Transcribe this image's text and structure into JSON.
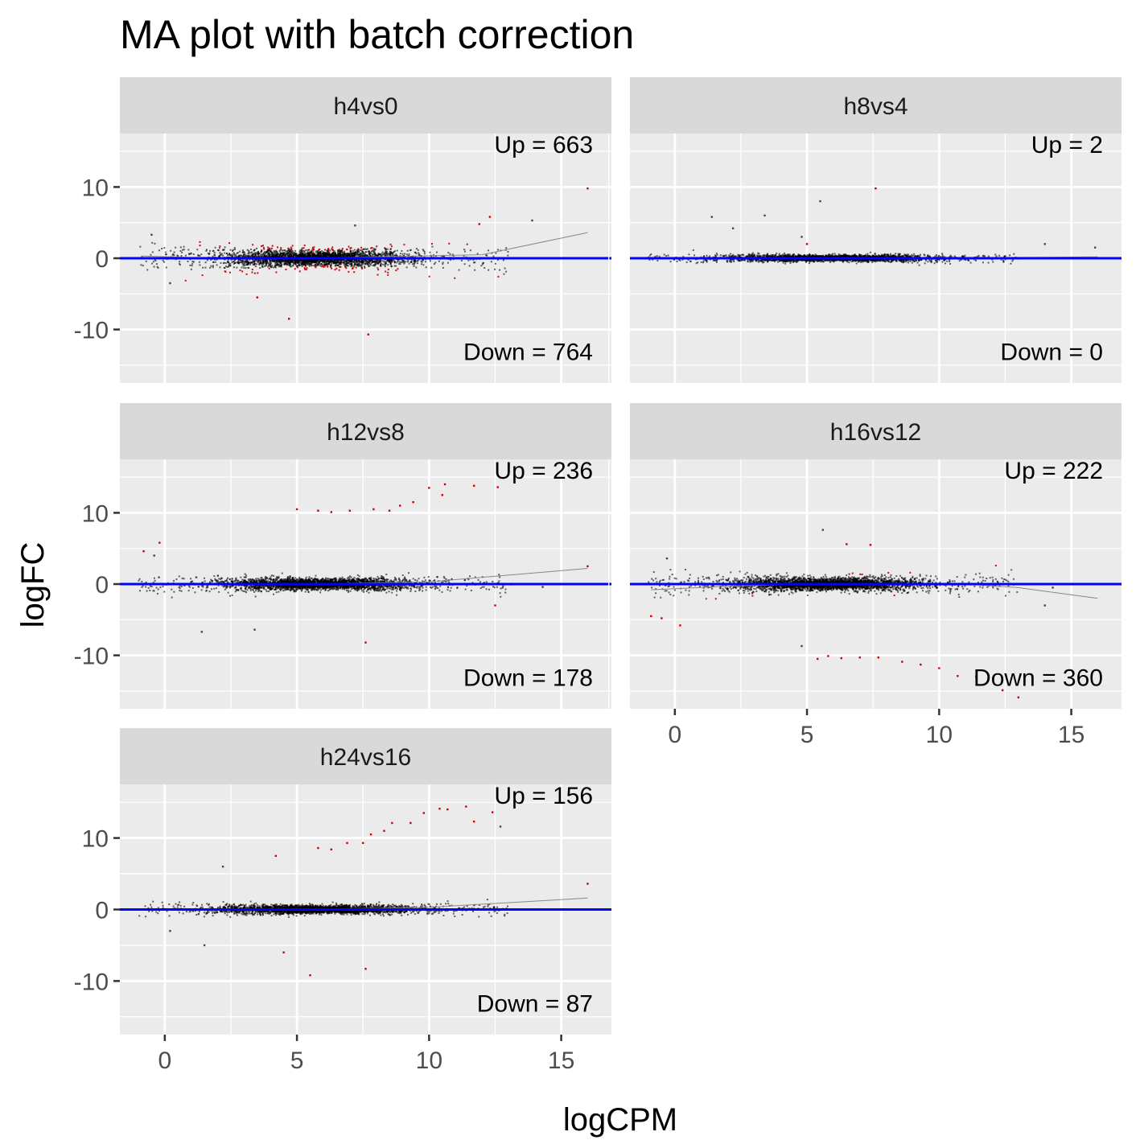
{
  "chart_data": {
    "type": "scatter",
    "title": "MA plot with batch correction",
    "xlabel": "logCPM",
    "ylabel": "logFC",
    "xlim": [
      -1.7,
      16.9
    ],
    "ylim": [
      -17.5,
      17.5
    ],
    "x_ticks": [
      0,
      5,
      10,
      15
    ],
    "y_ticks": [
      -10,
      0,
      10
    ],
    "grid": true,
    "facet_layout": "3 rows x 2 columns, free panel per contrast, shared axes",
    "colors": {
      "panel_bg": "#ebebeb",
      "strip_bg": "#d9d9d9",
      "grid": "#ffffff",
      "not_significant": "#000000",
      "significant": "#cc0000",
      "zero_line": "#0000ff",
      "trend_line": "#888888"
    },
    "panels": [
      {
        "name": "h4vs0",
        "up_label": "Up = 663",
        "down_label": "Down = 764",
        "trend": [
          [
            -0.9,
            0.3
          ],
          [
            2,
            0
          ],
          [
            5,
            0
          ],
          [
            8,
            0.2
          ],
          [
            12,
            0.5
          ],
          [
            16,
            3.6
          ]
        ],
        "outliers_sig": [
          [
            16,
            9.8
          ],
          [
            12.3,
            5.8
          ],
          [
            11.9,
            4.8
          ],
          [
            7.7,
            -10.7
          ],
          [
            4.7,
            -8.5
          ],
          [
            3.5,
            -5.5
          ]
        ],
        "outliers_ns": [
          [
            -0.5,
            3.3
          ],
          [
            0.2,
            -3.5
          ],
          [
            13.9,
            5.3
          ],
          [
            7.2,
            4.6
          ]
        ]
      },
      {
        "name": "h8vs4",
        "up_label": "Up = 2",
        "down_label": "Down = 0",
        "trend": [
          [
            -1,
            0.1
          ],
          [
            5,
            0
          ],
          [
            10,
            0
          ],
          [
            16,
            0.2
          ]
        ],
        "outliers_sig": [
          [
            7.6,
            9.8
          ],
          [
            5,
            2
          ]
        ],
        "outliers_ns": [
          [
            5.5,
            8
          ],
          [
            3.4,
            6
          ],
          [
            1.4,
            5.8
          ],
          [
            4.8,
            3
          ],
          [
            15.9,
            1.5
          ],
          [
            14,
            2
          ],
          [
            2.2,
            4.2
          ]
        ]
      },
      {
        "name": "h12vs8",
        "up_label": "Up = 236",
        "down_label": "Down = 178",
        "trend": [
          [
            -1,
            0.1
          ],
          [
            5,
            0
          ],
          [
            10,
            0.3
          ],
          [
            16,
            2.2
          ]
        ],
        "outliers_sig": [
          [
            5,
            10.5
          ],
          [
            5.8,
            10.3
          ],
          [
            6.3,
            10.1
          ],
          [
            7,
            10.3
          ],
          [
            7.9,
            10.5
          ],
          [
            8.5,
            10.3
          ],
          [
            8.9,
            11
          ],
          [
            9.4,
            11.5
          ],
          [
            10,
            13.5
          ],
          [
            10.5,
            12.5
          ],
          [
            10.6,
            14
          ],
          [
            11.7,
            13.8
          ],
          [
            12.6,
            13.6
          ],
          [
            -0.8,
            4.6
          ],
          [
            -0.2,
            5.8
          ],
          [
            7.6,
            -8.2
          ],
          [
            12.5,
            -3
          ],
          [
            16,
            2.5
          ]
        ],
        "outliers_ns": [
          [
            1.4,
            -6.7
          ],
          [
            3.4,
            -6.4
          ],
          [
            14.3,
            -0.4
          ],
          [
            -0.4,
            4
          ]
        ]
      },
      {
        "name": "h16vs12",
        "up_label": "Up = 222",
        "down_label": "Down = 360",
        "trend": [
          [
            -0.9,
            -0.8
          ],
          [
            2,
            -0.3
          ],
          [
            5,
            0
          ],
          [
            8,
            0
          ],
          [
            11,
            0
          ],
          [
            13,
            -0.5
          ],
          [
            16,
            -2
          ]
        ],
        "outliers_sig": [
          [
            -0.9,
            -4.5
          ],
          [
            -0.5,
            -4.8
          ],
          [
            0.2,
            -5.8
          ],
          [
            5.4,
            -10.5
          ],
          [
            5.8,
            -10.1
          ],
          [
            6.3,
            -10.4
          ],
          [
            7,
            -10.3
          ],
          [
            7.7,
            -10.3
          ],
          [
            8.6,
            -10.9
          ],
          [
            9.3,
            -11.3
          ],
          [
            10,
            -11.8
          ],
          [
            10.7,
            -12.9
          ],
          [
            11.4,
            -13
          ],
          [
            12.4,
            -14.9
          ],
          [
            13,
            -15.9
          ],
          [
            7.4,
            5.5
          ],
          [
            6.5,
            5.6
          ]
        ],
        "outliers_ns": [
          [
            -0.3,
            3.6
          ],
          [
            5.6,
            7.6
          ],
          [
            4.8,
            -8.7
          ],
          [
            14,
            -3
          ],
          [
            14.3,
            -0.5
          ]
        ]
      },
      {
        "name": "h24vs16",
        "up_label": "Up = 156",
        "down_label": "Down = 87",
        "trend": [
          [
            -1,
            0
          ],
          [
            5,
            0
          ],
          [
            10,
            0.3
          ],
          [
            16,
            1.6
          ]
        ],
        "outliers_sig": [
          [
            4.2,
            7.5
          ],
          [
            5.8,
            8.6
          ],
          [
            6.3,
            8.4
          ],
          [
            6.9,
            9.3
          ],
          [
            7.5,
            9.3
          ],
          [
            7.8,
            10.5
          ],
          [
            8.3,
            11
          ],
          [
            8.6,
            12.1
          ],
          [
            9.3,
            12.1
          ],
          [
            9.8,
            13.5
          ],
          [
            10.4,
            14.1
          ],
          [
            10.7,
            14
          ],
          [
            11.4,
            14.4
          ],
          [
            11.7,
            12.3
          ],
          [
            12.4,
            13.6
          ],
          [
            16,
            3.6
          ],
          [
            7.6,
            -8.3
          ],
          [
            5.5,
            -9.2
          ],
          [
            4.5,
            -6
          ]
        ],
        "outliers_ns": [
          [
            12.7,
            11.6
          ],
          [
            2.2,
            6
          ],
          [
            0.2,
            -3
          ],
          [
            1.5,
            -5
          ],
          [
            14.5,
            0
          ]
        ]
      }
    ]
  }
}
